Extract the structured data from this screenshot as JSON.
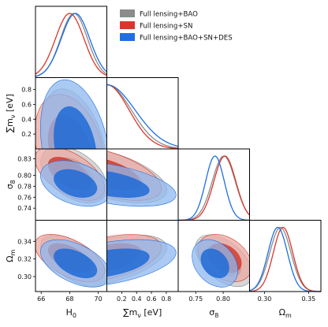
{
  "chart_data": {
    "type": "corner",
    "parameters": [
      {
        "key": "H0",
        "label_main": "H",
        "label_sub": "0",
        "unit": "",
        "range": [
          65.6,
          70.6
        ],
        "ticks": [
          66,
          68,
          70
        ],
        "tick_labels": [
          "66",
          "68",
          "70"
        ]
      },
      {
        "key": "sum_mnu",
        "label_main": "∑m",
        "label_sub": "ν",
        "unit": " [eV]",
        "range": [
          0.0,
          0.96
        ],
        "ticks": [
          0.2,
          0.4,
          0.6,
          0.8
        ],
        "tick_labels": [
          "0.2",
          "0.4",
          "0.6",
          "0.8"
        ]
      },
      {
        "key": "sigma8",
        "label_main": "σ",
        "label_sub": "8",
        "unit": "",
        "range": [
          0.718,
          0.848
        ],
        "ticks": [
          0.75,
          0.8
        ],
        "tick_labels": [
          "0.75",
          "0.80"
        ]
      },
      {
        "key": "Omega_m",
        "label_main": "Ω",
        "label_sub": "m",
        "unit": "",
        "range": [
          0.283,
          0.364
        ],
        "ticks": [
          0.3,
          0.35
        ],
        "tick_labels": [
          "0.30",
          "0.35"
        ]
      }
    ],
    "y_ticks": {
      "sum_mnu": {
        "ticks": [
          0.2,
          0.4,
          0.6,
          0.8
        ],
        "tick_labels": [
          "0.2",
          "0.4",
          "0.6",
          "0.8"
        ]
      },
      "sigma8": {
        "ticks": [
          0.74,
          0.76,
          0.78,
          0.8,
          0.83
        ],
        "tick_labels": [
          "0.74",
          "0.76",
          "0.78",
          "0.80",
          "0.83"
        ]
      },
      "Omega_m": {
        "ticks": [
          0.3,
          0.32,
          0.34
        ],
        "tick_labels": [
          "0.30",
          "0.32",
          "0.34"
        ]
      }
    },
    "series": [
      {
        "name": "Full lensing+BAO",
        "color": "#8c8c8c",
        "fill_inner": "#6f6f6f",
        "fill_outer": "#c8c8c8",
        "means": {
          "H0": 68.3,
          "sum_mnu": 0.0,
          "sigma8": 0.801,
          "Omega_m": 0.318
        },
        "sd": {
          "H0": 0.95,
          "sum_mnu": 0.33,
          "sigma8": 0.021,
          "Omega_m": 0.012
        },
        "corr": {
          "sum_mnu|H0": -0.35,
          "sigma8|H0": -0.45,
          "sigma8|sum_mnu": -0.55,
          "Omega_m|H0": -0.6,
          "Omega_m|sum_mnu": 0.5,
          "Omega_m|sigma8": -0.5
        }
      },
      {
        "name": "Full lensing+SN",
        "color": "#d6382c",
        "fill_inner": "#d43d30",
        "fill_outer": "#eca9a3",
        "means": {
          "H0": 68.0,
          "sum_mnu": 0.0,
          "sigma8": 0.803,
          "Omega_m": 0.321
        },
        "sd": {
          "H0": 1.0,
          "sum_mnu": 0.3,
          "sigma8": 0.02,
          "Omega_m": 0.011
        },
        "corr": {
          "sum_mnu|H0": -0.3,
          "sigma8|H0": -0.55,
          "sigma8|sum_mnu": -0.55,
          "Omega_m|H0": -0.55,
          "Omega_m|sum_mnu": 0.45,
          "Omega_m|sigma8": -0.35
        }
      },
      {
        "name": "Full lensing+BAO+SN+DES",
        "color": "#1f6fe0",
        "fill_inner": "#1f6bd6",
        "fill_outer": "#8fb8ef",
        "means": {
          "H0": 68.4,
          "sum_mnu": 0.0,
          "sigma8": 0.785,
          "Omega_m": 0.315
        },
        "sd": {
          "H0": 1.0,
          "sum_mnu": 0.38,
          "sigma8": 0.017,
          "Omega_m": 0.011
        },
        "corr": {
          "sum_mnu|H0": -0.3,
          "sigma8|H0": -0.35,
          "sigma8|sum_mnu": -0.5,
          "Omega_m|H0": -0.5,
          "Omega_m|sum_mnu": 0.45,
          "Omega_m|sigma8": -0.3
        }
      }
    ],
    "legend_position": "top-right"
  }
}
